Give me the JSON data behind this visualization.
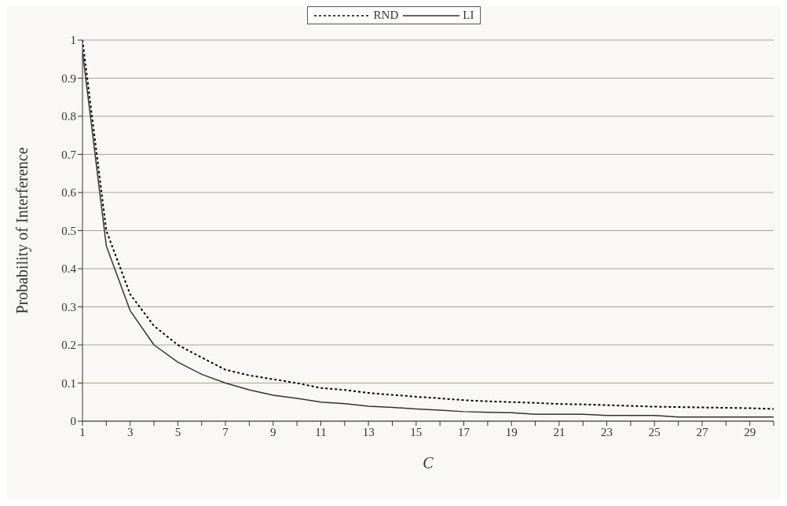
{
  "chart_data": {
    "type": "line",
    "xlabel": "C",
    "ylabel": "Probability of Interference",
    "x": [
      1,
      2,
      3,
      4,
      5,
      6,
      7,
      8,
      9,
      10,
      11,
      12,
      13,
      14,
      15,
      16,
      17,
      18,
      19,
      20,
      21,
      22,
      23,
      24,
      25,
      26,
      27,
      28,
      29,
      30
    ],
    "xlim": [
      1,
      30
    ],
    "xticks": [
      1,
      {
        "value": 2,
        "label": null
      },
      3,
      {
        "value": 4,
        "label": null
      },
      5,
      {
        "value": 6,
        "label": null
      },
      7,
      {
        "value": 8,
        "label": null
      },
      9,
      {
        "value": 10,
        "label": null
      },
      11,
      {
        "value": 12,
        "label": null
      },
      13,
      {
        "value": 14,
        "label": null
      },
      15,
      {
        "value": 16,
        "label": null
      },
      17,
      {
        "value": 18,
        "label": null
      },
      19,
      {
        "value": 20,
        "label": null
      },
      21,
      {
        "value": 22,
        "label": null
      },
      23,
      {
        "value": 24,
        "label": null
      },
      25,
      {
        "value": 26,
        "label": null
      },
      27,
      {
        "value": 28,
        "label": null
      },
      29,
      {
        "value": 30,
        "label": null
      }
    ],
    "series": [
      {
        "name": "RND",
        "color": "#000000",
        "line_style": "dotted",
        "values": [
          1.0,
          0.5,
          0.333,
          0.25,
          0.2,
          0.167,
          0.135,
          0.12,
          0.11,
          0.1,
          0.087,
          0.082,
          0.074,
          0.069,
          0.064,
          0.06,
          0.055,
          0.052,
          0.05,
          0.048,
          0.045,
          0.044,
          0.042,
          0.04,
          0.038,
          0.037,
          0.036,
          0.035,
          0.034,
          0.032
        ]
      },
      {
        "name": "LI",
        "color": "#333333",
        "line_style": "solid",
        "values": [
          0.97,
          0.46,
          0.29,
          0.2,
          0.155,
          0.123,
          0.1,
          0.082,
          0.068,
          0.06,
          0.05,
          0.046,
          0.039,
          0.036,
          0.032,
          0.029,
          0.025,
          0.023,
          0.022,
          0.018,
          0.018,
          0.018,
          0.015,
          0.015,
          0.015,
          0.011,
          0.011,
          0.011,
          0.011,
          0.011
        ]
      }
    ],
    "ylim": [
      0,
      1
    ],
    "yticks": [
      0,
      0.1,
      0.2,
      0.3,
      0.4,
      0.5,
      0.6,
      0.7,
      0.8,
      0.9,
      1
    ],
    "grid": "y",
    "legend": "top",
    "marker": "none"
  }
}
